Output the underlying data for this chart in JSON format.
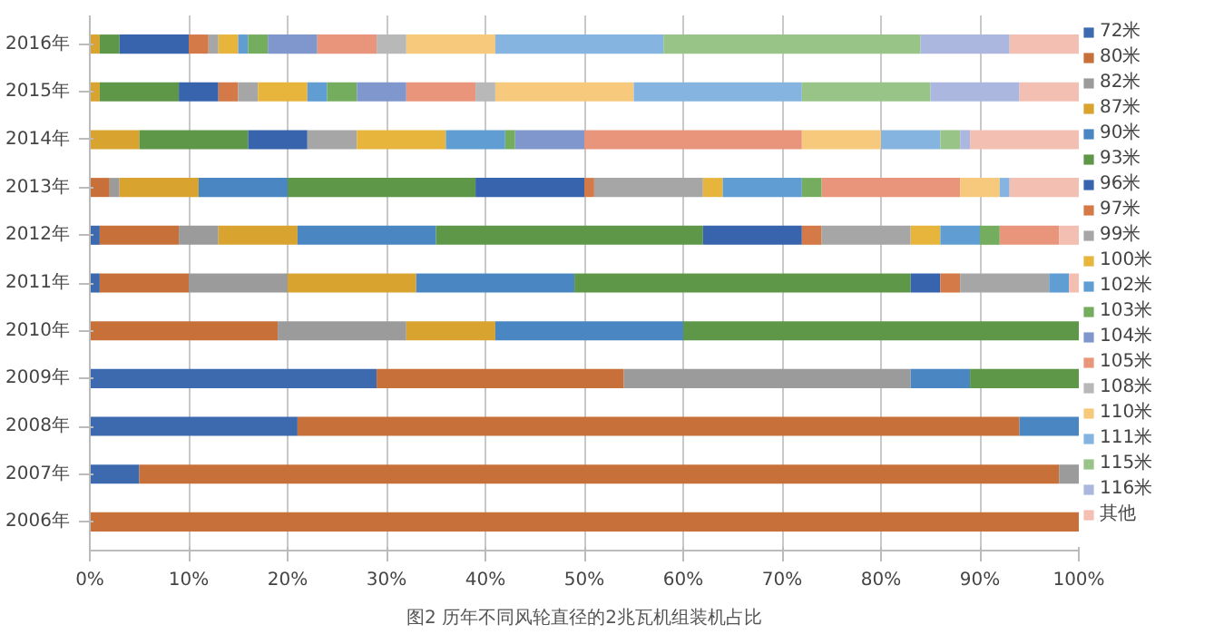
{
  "chart_data": {
    "type": "bar",
    "orientation": "horizontal",
    "stacked": true,
    "categories": [
      "2016年",
      "2015年",
      "2014年",
      "2013年",
      "2012年",
      "2011年",
      "2010年",
      "2009年",
      "2008年",
      "2007年",
      "2006年"
    ],
    "series": [
      {
        "name": "72米",
        "color": "#3d6aae",
        "values": [
          null,
          null,
          null,
          null,
          1,
          1,
          null,
          29,
          21,
          5,
          null
        ]
      },
      {
        "name": "80米",
        "color": "#c8703a",
        "values": [
          null,
          null,
          null,
          2,
          8,
          9,
          19,
          25,
          73,
          93,
          100
        ]
      },
      {
        "name": "82米",
        "color": "#9b9b9b",
        "values": [
          null,
          null,
          null,
          1,
          4,
          10,
          13,
          29,
          null,
          2,
          null
        ]
      },
      {
        "name": "87米",
        "color": "#d9a32f",
        "values": [
          1,
          1,
          5,
          8,
          8,
          13,
          9,
          null,
          null,
          null,
          null
        ]
      },
      {
        "name": "90米",
        "color": "#4a87c2",
        "values": [
          null,
          null,
          null,
          9,
          14,
          16,
          19,
          6,
          6,
          null,
          null
        ]
      },
      {
        "name": "93米",
        "color": "#5e9748",
        "values": [
          2,
          8,
          11,
          19,
          27,
          34,
          40,
          11,
          null,
          null,
          null
        ]
      },
      {
        "name": "96米",
        "color": "#3764ad",
        "values": [
          7,
          4,
          6,
          11,
          10,
          3,
          null,
          null,
          null,
          null,
          null
        ]
      },
      {
        "name": "97米",
        "color": "#d47a48",
        "values": [
          2,
          2,
          null,
          1,
          2,
          2,
          null,
          null,
          null,
          null,
          null
        ]
      },
      {
        "name": "99米",
        "color": "#a6a6a6",
        "values": [
          1,
          2,
          5,
          11,
          9,
          9,
          null,
          null,
          null,
          null,
          null
        ]
      },
      {
        "name": "100米",
        "color": "#e7b43c",
        "values": [
          2,
          5,
          9,
          2,
          3,
          null,
          null,
          null,
          null,
          null,
          null
        ]
      },
      {
        "name": "102米",
        "color": "#5f9dd2",
        "values": [
          1,
          2,
          6,
          8,
          4,
          2,
          null,
          null,
          null,
          null,
          null
        ]
      },
      {
        "name": "103米",
        "color": "#74ad5e",
        "values": [
          2,
          3,
          1,
          2,
          2,
          null,
          null,
          null,
          null,
          null,
          null
        ]
      },
      {
        "name": "104米",
        "color": "#7f97cc",
        "values": [
          5,
          5,
          7,
          null,
          null,
          null,
          null,
          null,
          null,
          null,
          null
        ]
      },
      {
        "name": "105米",
        "color": "#e9957c",
        "values": [
          6,
          7,
          22,
          14,
          6,
          null,
          null,
          null,
          null,
          null,
          null
        ]
      },
      {
        "name": "108米",
        "color": "#b8b8b8",
        "values": [
          3,
          2,
          null,
          null,
          null,
          null,
          null,
          null,
          null,
          null,
          null
        ]
      },
      {
        "name": "110米",
        "color": "#f6c97c",
        "values": [
          9,
          14,
          8,
          4,
          null,
          null,
          null,
          null,
          null,
          null,
          null
        ]
      },
      {
        "name": "111米",
        "color": "#86b4e0",
        "values": [
          17,
          17,
          6,
          1,
          null,
          null,
          null,
          null,
          null,
          null,
          null
        ]
      },
      {
        "name": "115米",
        "color": "#98c488",
        "values": [
          26,
          13,
          2,
          null,
          null,
          null,
          null,
          null,
          null,
          null,
          null
        ]
      },
      {
        "name": "116米",
        "color": "#abb7de",
        "values": [
          9,
          9,
          1,
          null,
          null,
          null,
          null,
          null,
          null,
          null,
          null
        ]
      },
      {
        "name": "其他",
        "color": "#f4bfb3",
        "values": [
          7,
          6,
          11,
          7,
          2,
          1,
          null,
          null,
          null,
          null,
          null
        ]
      }
    ],
    "xlim": [
      0,
      100
    ],
    "xticks": [
      {
        "value": 0,
        "label": "0%"
      },
      {
        "value": 10,
        "label": "10%"
      },
      {
        "value": 20,
        "label": "20%"
      },
      {
        "value": 30,
        "label": "30%"
      },
      {
        "value": 40,
        "label": "40%"
      },
      {
        "value": 50,
        "label": "50%"
      },
      {
        "value": 60,
        "label": "60%"
      },
      {
        "value": 70,
        "label": "70%"
      },
      {
        "value": 80,
        "label": "80%"
      },
      {
        "value": 90,
        "label": "90%"
      },
      {
        "value": 100,
        "label": "100%"
      }
    ],
    "grid": "x",
    "legend": "right",
    "annotations": [
      "图2 历年不同风轮直径的2兆瓦机组装机占比"
    ]
  }
}
